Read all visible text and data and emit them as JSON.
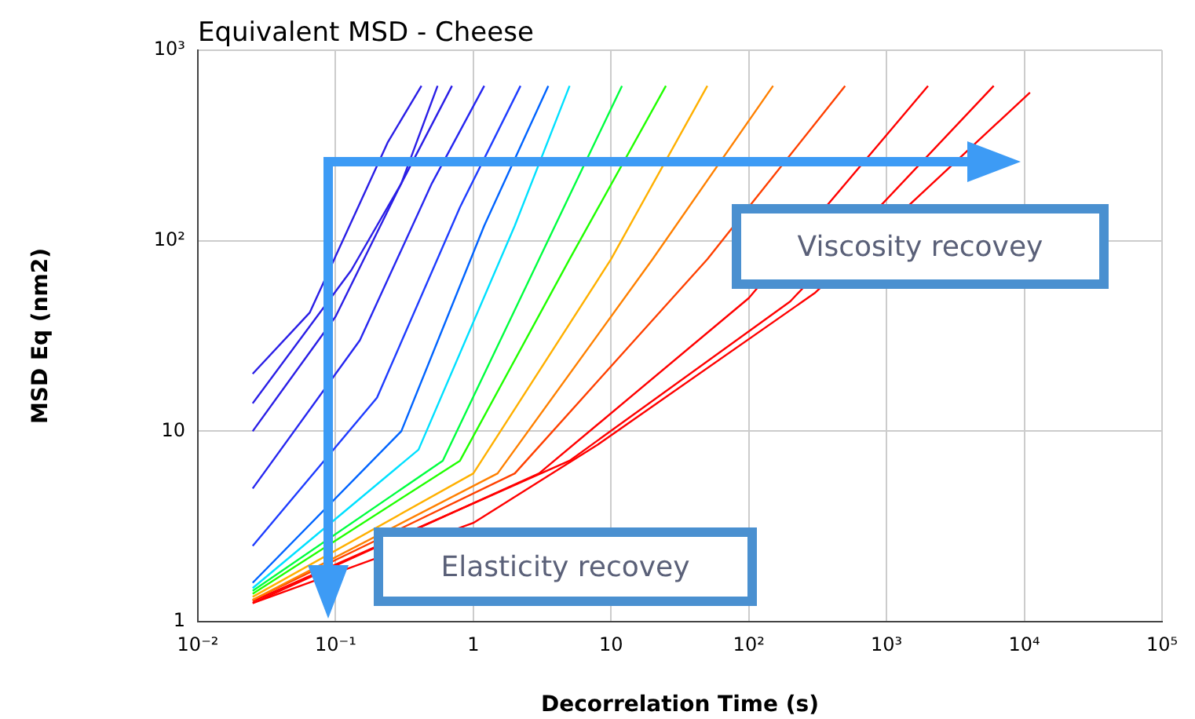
{
  "chart_data": {
    "type": "line",
    "title": "Equivalent MSD - Cheese",
    "xlabel": "Decorrelation Time (s)",
    "ylabel": "MSD Eq (nm2)",
    "log": "xy",
    "grid": true,
    "legend": false,
    "marker": "none",
    "line_style": "solid",
    "xlim": [
      0.01,
      100000
    ],
    "ylim": [
      1,
      1000
    ],
    "xticks": [
      {
        "value": 0.01,
        "label": "10⁻²"
      },
      {
        "value": 0.1,
        "label": "10⁻¹"
      },
      1,
      10,
      {
        "value": 100,
        "label": "10²"
      },
      {
        "value": 1000,
        "label": "10³"
      },
      {
        "value": 10000,
        "label": "10⁴"
      },
      {
        "value": 100000,
        "label": "10⁵"
      }
    ],
    "yticks": [
      1,
      10,
      {
        "value": 100,
        "label": "10²"
      },
      {
        "value": 1000,
        "label": "10³"
      }
    ],
    "annotations": [
      "Viscosity recovey",
      "Elasticity recovey"
    ],
    "series": [
      {
        "color": "#2a1ee6",
        "x": [
          0.025,
          0.065,
          0.24,
          0.42
        ],
        "values": [
          20,
          42,
          330,
          650
        ]
      },
      {
        "color": "#2a1ee6",
        "x": [
          0.025,
          0.13,
          0.3,
          0.55
        ],
        "values": [
          14,
          70,
          200,
          650
        ]
      },
      {
        "color": "#2a1ee6",
        "x": [
          0.025,
          0.1,
          0.3,
          0.7
        ],
        "values": [
          10,
          40,
          200,
          650
        ]
      },
      {
        "color": "#2626f0",
        "x": [
          0.025,
          0.15,
          0.5,
          1.2
        ],
        "values": [
          5,
          30,
          200,
          650
        ]
      },
      {
        "color": "#1e3cff",
        "x": [
          0.025,
          0.2,
          0.8,
          2.2
        ],
        "values": [
          2.5,
          15,
          150,
          650
        ]
      },
      {
        "color": "#0064ff",
        "x": [
          0.025,
          0.3,
          1.2,
          3.5
        ],
        "values": [
          1.6,
          10,
          120,
          650
        ]
      },
      {
        "color": "#00e0ff",
        "x": [
          0.025,
          0.4,
          2,
          5
        ],
        "values": [
          1.5,
          8,
          120,
          650
        ]
      },
      {
        "color": "#00ff40",
        "x": [
          0.025,
          0.6,
          3,
          12
        ],
        "values": [
          1.45,
          7,
          80,
          650
        ]
      },
      {
        "color": "#20ff00",
        "x": [
          0.025,
          0.8,
          5,
          25
        ],
        "values": [
          1.4,
          7,
          80,
          650
        ]
      },
      {
        "color": "#ffb000",
        "x": [
          0.025,
          1,
          10,
          50
        ],
        "values": [
          1.35,
          6,
          80,
          650
        ]
      },
      {
        "color": "#ff8000",
        "x": [
          0.025,
          1.5,
          20,
          150
        ],
        "values": [
          1.3,
          6,
          80,
          650
        ]
      },
      {
        "color": "#ff4000",
        "x": [
          0.025,
          2,
          50,
          500
        ],
        "values": [
          1.3,
          6,
          80,
          650
        ]
      },
      {
        "color": "#ff0000",
        "x": [
          0.025,
          3,
          100,
          2000
        ],
        "values": [
          1.25,
          6,
          50,
          650
        ]
      },
      {
        "color": "#ff0000",
        "x": [
          0.025,
          5,
          200,
          6000
        ],
        "values": [
          1.28,
          7,
          48,
          650
        ]
      },
      {
        "color": "#ff0000",
        "x": [
          0.025,
          1,
          8,
          300,
          11000
        ],
        "values": [
          1.25,
          3.3,
          8.5,
          53,
          600
        ]
      }
    ]
  }
}
